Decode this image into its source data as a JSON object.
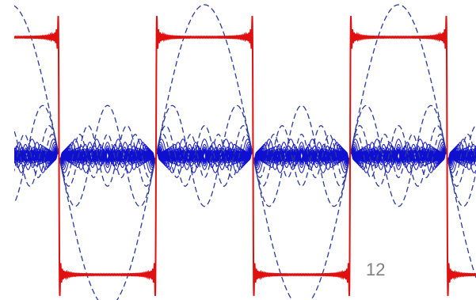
{
  "page_number": "12"
}
